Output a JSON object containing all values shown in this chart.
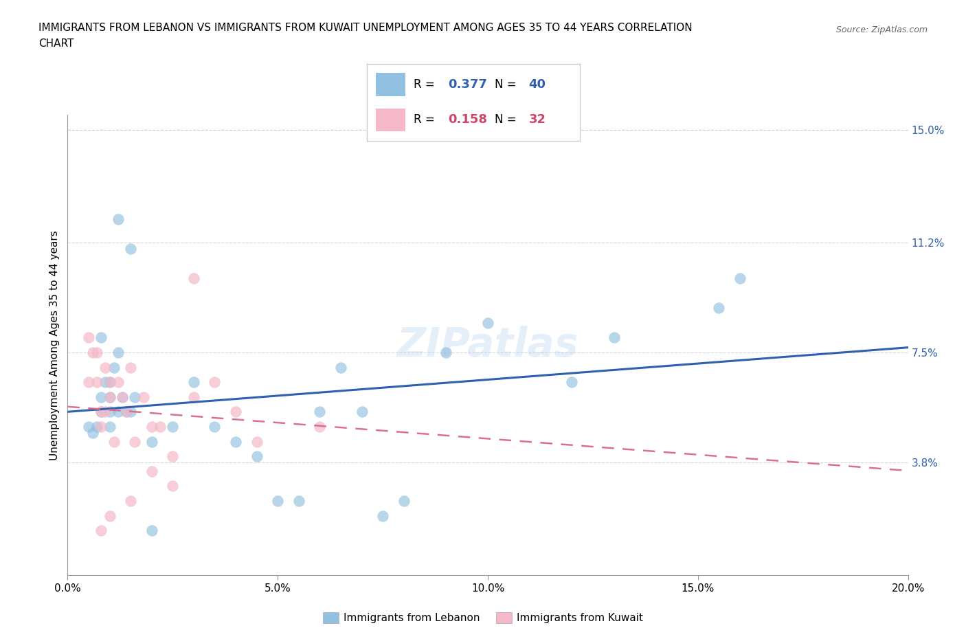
{
  "title_line1": "IMMIGRANTS FROM LEBANON VS IMMIGRANTS FROM KUWAIT UNEMPLOYMENT AMONG AGES 35 TO 44 YEARS CORRELATION",
  "title_line2": "CHART",
  "source": "Source: ZipAtlas.com",
  "ylabel_label": "Unemployment Among Ages 35 to 44 years",
  "xlim": [
    0.0,
    0.2
  ],
  "ylim": [
    0.0,
    0.155
  ],
  "xticks": [
    0.0,
    0.05,
    0.1,
    0.15,
    0.2
  ],
  "xticklabels": [
    "0.0%",
    "5.0%",
    "10.0%",
    "15.0%",
    "20.0%"
  ],
  "yticks_right": [
    0.038,
    0.075,
    0.112,
    0.15
  ],
  "yticklabels_right": [
    "3.8%",
    "7.5%",
    "11.2%",
    "15.0%"
  ],
  "r_lebanon": 0.377,
  "n_lebanon": 40,
  "r_kuwait": 0.158,
  "n_kuwait": 32,
  "color_lebanon": "#92c0e0",
  "color_kuwait": "#f4b8c8",
  "trendline_color_lebanon": "#3060b0",
  "trendline_color_kuwait": "#d87090",
  "watermark": "ZIPatlas",
  "lebanon_x": [
    0.005,
    0.006,
    0.007,
    0.008,
    0.008,
    0.009,
    0.01,
    0.01,
    0.01,
    0.011,
    0.012,
    0.012,
    0.013,
    0.014,
    0.015,
    0.016,
    0.008,
    0.01,
    0.012,
    0.015,
    0.02,
    0.025,
    0.03,
    0.035,
    0.04,
    0.045,
    0.05,
    0.055,
    0.06,
    0.065,
    0.07,
    0.075,
    0.08,
    0.09,
    0.1,
    0.12,
    0.13,
    0.02,
    0.155,
    0.16
  ],
  "lebanon_y": [
    0.05,
    0.048,
    0.05,
    0.055,
    0.06,
    0.065,
    0.05,
    0.055,
    0.06,
    0.07,
    0.055,
    0.075,
    0.06,
    0.055,
    0.11,
    0.06,
    0.08,
    0.065,
    0.12,
    0.055,
    0.045,
    0.05,
    0.065,
    0.05,
    0.045,
    0.04,
    0.025,
    0.025,
    0.055,
    0.07,
    0.055,
    0.02,
    0.025,
    0.075,
    0.085,
    0.065,
    0.08,
    0.015,
    0.09,
    0.1
  ],
  "kuwait_x": [
    0.005,
    0.005,
    0.006,
    0.007,
    0.007,
    0.008,
    0.008,
    0.009,
    0.009,
    0.01,
    0.01,
    0.011,
    0.012,
    0.013,
    0.014,
    0.015,
    0.015,
    0.016,
    0.018,
    0.02,
    0.02,
    0.022,
    0.025,
    0.025,
    0.03,
    0.035,
    0.04,
    0.045,
    0.01,
    0.008,
    0.06,
    0.03
  ],
  "kuwait_y": [
    0.065,
    0.08,
    0.075,
    0.075,
    0.065,
    0.055,
    0.05,
    0.07,
    0.055,
    0.06,
    0.065,
    0.045,
    0.065,
    0.06,
    0.055,
    0.07,
    0.025,
    0.045,
    0.06,
    0.05,
    0.035,
    0.05,
    0.04,
    0.03,
    0.06,
    0.065,
    0.055,
    0.045,
    0.02,
    0.015,
    0.05,
    0.1
  ],
  "grid_color": "#cccccc",
  "right_tick_color": "#3060b0"
}
